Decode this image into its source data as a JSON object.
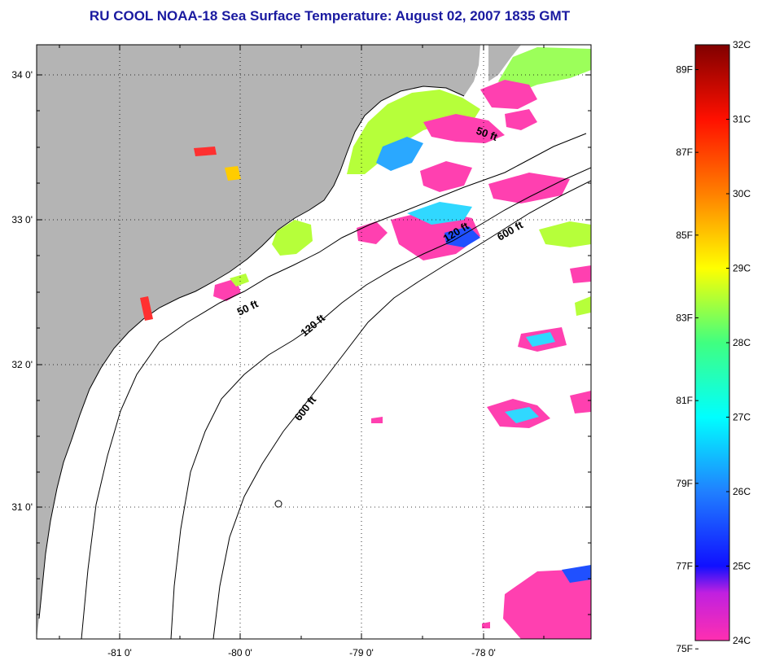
{
  "title": "RU COOL  NOAA-18  Sea Surface Temperature:  August 02, 2007 1835 GMT",
  "colors": {
    "land": "#b4b4b4",
    "ocean": "#ffffff",
    "title": "#1a1aa0"
  },
  "axes": {
    "lat_labels": [
      "34 0'",
      "33 0'",
      "32 0'",
      "31 0'"
    ],
    "lon_labels": [
      "-81 0'",
      "-80 0'",
      "-79 0'",
      "-78 0'"
    ]
  },
  "contours": {
    "labels": [
      "50 ft",
      "50 ft",
      "120 ft",
      "120 ft",
      "600 ft",
      "600 ft"
    ]
  },
  "colorbar": {
    "fahrenheit": [
      "89F",
      "87F",
      "85F",
      "83F",
      "81F",
      "79F",
      "77F",
      "75F"
    ],
    "celsius": [
      "32C",
      "31C",
      "30C",
      "29C",
      "28C",
      "27C",
      "26C",
      "25C",
      "24C"
    ],
    "fahrenheit_values": [
      89,
      87,
      85,
      83,
      81,
      79,
      77,
      75
    ],
    "celsius_values": [
      32,
      31,
      30,
      29,
      28,
      27,
      26,
      25,
      24
    ],
    "range_c": [
      24,
      32
    ]
  }
}
